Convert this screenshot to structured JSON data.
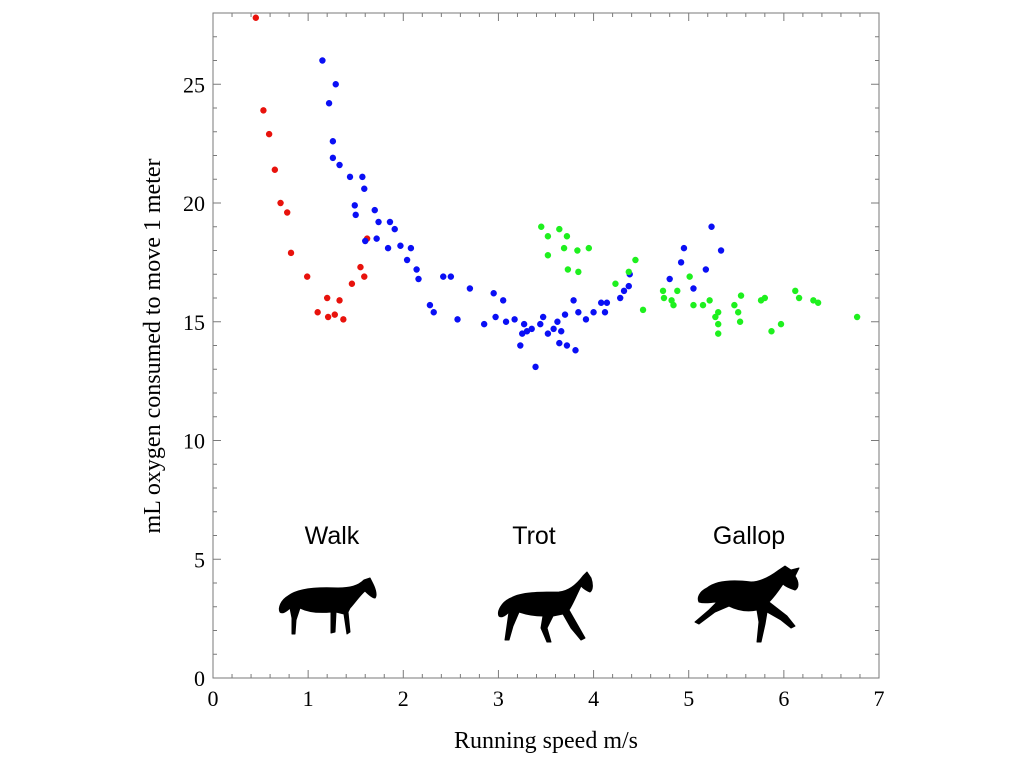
{
  "chart_data": {
    "type": "scatter",
    "title": "",
    "xlabel": "Running speed m/s",
    "ylabel": "mL oxygen consumed to move 1 meter",
    "xlim": [
      0,
      7
    ],
    "ylim": [
      0,
      28
    ],
    "x_ticks": [
      0,
      1,
      2,
      3,
      4,
      5,
      6,
      7
    ],
    "y_ticks": [
      0,
      5,
      10,
      15,
      20,
      25
    ],
    "grid": false,
    "legend": "none",
    "series": [
      {
        "color": "#e8120c",
        "points": [
          [
            0.45,
            27.8
          ],
          [
            0.53,
            23.9
          ],
          [
            0.59,
            22.9
          ],
          [
            0.65,
            21.4
          ],
          [
            0.71,
            20.0
          ],
          [
            0.78,
            19.6
          ],
          [
            0.82,
            17.9
          ],
          [
            0.99,
            16.9
          ],
          [
            1.1,
            15.4
          ],
          [
            1.2,
            16.0
          ],
          [
            1.21,
            15.2
          ],
          [
            1.28,
            15.3
          ],
          [
            1.33,
            15.9
          ],
          [
            1.37,
            15.1
          ],
          [
            1.46,
            16.6
          ],
          [
            1.55,
            17.3
          ],
          [
            1.59,
            16.9
          ],
          [
            1.62,
            18.5
          ]
        ]
      },
      {
        "color": "#0a0ff5",
        "points": [
          [
            1.15,
            26.0
          ],
          [
            1.22,
            24.2
          ],
          [
            1.26,
            22.6
          ],
          [
            1.29,
            25.0
          ],
          [
            1.26,
            21.9
          ],
          [
            1.33,
            21.6
          ],
          [
            1.44,
            21.1
          ],
          [
            1.49,
            19.9
          ],
          [
            1.5,
            19.5
          ],
          [
            1.57,
            21.1
          ],
          [
            1.59,
            20.6
          ],
          [
            1.6,
            18.4
          ],
          [
            1.7,
            19.7
          ],
          [
            1.72,
            18.5
          ],
          [
            1.74,
            19.2
          ],
          [
            1.84,
            18.1
          ],
          [
            1.86,
            19.2
          ],
          [
            1.91,
            18.9
          ],
          [
            1.97,
            18.2
          ],
          [
            2.04,
            17.6
          ],
          [
            2.08,
            18.1
          ],
          [
            2.14,
            17.2
          ],
          [
            2.16,
            16.8
          ],
          [
            2.28,
            15.7
          ],
          [
            2.32,
            15.4
          ],
          [
            2.42,
            16.9
          ],
          [
            2.5,
            16.9
          ],
          [
            2.57,
            15.1
          ],
          [
            2.7,
            16.4
          ],
          [
            2.85,
            14.9
          ],
          [
            2.95,
            16.2
          ],
          [
            2.97,
            15.2
          ],
          [
            3.05,
            15.9
          ],
          [
            3.08,
            15.0
          ],
          [
            3.17,
            15.1
          ],
          [
            3.23,
            14.0
          ],
          [
            3.25,
            14.5
          ],
          [
            3.27,
            14.9
          ],
          [
            3.3,
            14.6
          ],
          [
            3.35,
            14.7
          ],
          [
            3.39,
            13.1
          ],
          [
            3.44,
            14.9
          ],
          [
            3.47,
            15.2
          ],
          [
            3.52,
            14.5
          ],
          [
            3.58,
            14.7
          ],
          [
            3.62,
            15.0
          ],
          [
            3.64,
            14.1
          ],
          [
            3.66,
            14.6
          ],
          [
            3.7,
            15.3
          ],
          [
            3.72,
            14.0
          ],
          [
            3.79,
            15.9
          ],
          [
            3.81,
            13.8
          ],
          [
            3.84,
            15.4
          ],
          [
            3.92,
            15.1
          ],
          [
            4.0,
            15.4
          ],
          [
            4.08,
            15.8
          ],
          [
            4.12,
            15.4
          ],
          [
            4.14,
            15.8
          ],
          [
            4.28,
            16.0
          ],
          [
            4.32,
            16.3
          ],
          [
            4.37,
            16.5
          ],
          [
            4.38,
            17.0
          ],
          [
            4.8,
            16.8
          ],
          [
            4.92,
            17.5
          ],
          [
            4.95,
            18.1
          ],
          [
            5.05,
            16.4
          ],
          [
            5.18,
            17.2
          ],
          [
            5.24,
            19.0
          ],
          [
            5.34,
            18.0
          ]
        ]
      },
      {
        "color": "#1ef01e",
        "points": [
          [
            3.45,
            19.0
          ],
          [
            3.52,
            18.6
          ],
          [
            3.52,
            17.8
          ],
          [
            3.64,
            18.9
          ],
          [
            3.69,
            18.1
          ],
          [
            3.72,
            18.6
          ],
          [
            3.73,
            17.2
          ],
          [
            3.83,
            18.0
          ],
          [
            3.84,
            17.1
          ],
          [
            3.95,
            18.1
          ],
          [
            4.23,
            16.6
          ],
          [
            4.37,
            17.1
          ],
          [
            4.44,
            17.6
          ],
          [
            4.52,
            15.5
          ],
          [
            4.73,
            16.3
          ],
          [
            4.74,
            16.0
          ],
          [
            4.82,
            15.9
          ],
          [
            4.84,
            15.7
          ],
          [
            4.88,
            16.3
          ],
          [
            5.01,
            16.9
          ],
          [
            5.05,
            15.7
          ],
          [
            5.15,
            15.7
          ],
          [
            5.22,
            15.9
          ],
          [
            5.28,
            15.2
          ],
          [
            5.31,
            14.9
          ],
          [
            5.31,
            15.4
          ],
          [
            5.31,
            14.5
          ],
          [
            5.48,
            15.7
          ],
          [
            5.52,
            15.4
          ],
          [
            5.54,
            15.0
          ],
          [
            5.55,
            16.1
          ],
          [
            5.76,
            15.9
          ],
          [
            5.8,
            16.0
          ],
          [
            5.87,
            14.6
          ],
          [
            5.97,
            14.9
          ],
          [
            6.12,
            16.3
          ],
          [
            6.16,
            16.0
          ],
          [
            6.31,
            15.9
          ],
          [
            6.36,
            15.8
          ],
          [
            6.77,
            15.2
          ]
        ]
      }
    ],
    "annotations": [
      {
        "text": "Walk",
        "x": 1.25,
        "y": 6.0
      },
      {
        "text": "Trot",
        "x": 3.4,
        "y": 6.0
      },
      {
        "text": "Gallop",
        "x": 5.6,
        "y": 6.0
      }
    ]
  }
}
